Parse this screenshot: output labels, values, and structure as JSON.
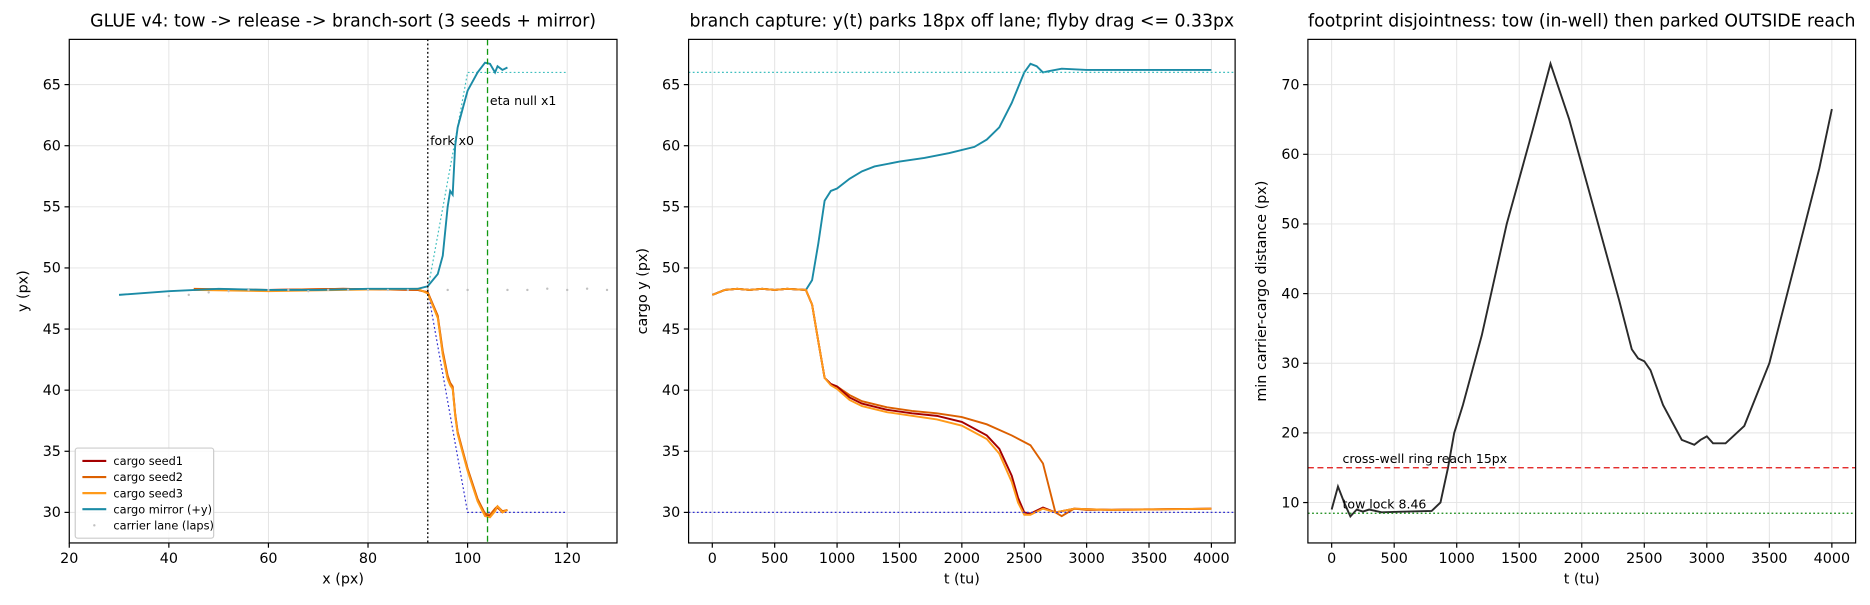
{
  "chart_data": [
    {
      "type": "line",
      "title": "GLUE v4: tow -> release -> branch-sort (3 seeds + mirror)",
      "x_label": "x (px)",
      "y_label": "y (px)",
      "xlim": [
        20,
        130
      ],
      "ylim": [
        27.5,
        68.7
      ],
      "xticks": [
        20,
        40,
        60,
        80,
        100,
        120
      ],
      "yticks": [
        30,
        35,
        40,
        45,
        50,
        55,
        60,
        65
      ],
      "grid": true,
      "legend": "lower left",
      "series": [
        {
          "name": "cargo seed1",
          "color": "#a50000",
          "x": [
            45,
            60,
            75,
            90,
            92,
            94,
            95,
            96,
            96.5,
            97,
            97.5,
            98,
            99,
            100,
            102,
            103.5,
            104.5,
            105.5,
            106,
            107,
            108
          ],
          "y": [
            48.2,
            48.2,
            48.3,
            48.2,
            48,
            46,
            43,
            41,
            40.5,
            40.2,
            38,
            36.5,
            35,
            33.5,
            31,
            29.8,
            29.7,
            30.2,
            30.4,
            30,
            30.2
          ]
        },
        {
          "name": "cargo seed2",
          "color": "#dc6000",
          "x": [
            45,
            60,
            75,
            90,
            92,
            94,
            95,
            96,
            96.5,
            97,
            97.5,
            98,
            99,
            100,
            102,
            103.5,
            104.5,
            105.5,
            106,
            107,
            108
          ],
          "y": [
            48.3,
            48.2,
            48.3,
            48.2,
            48,
            46.1,
            43.2,
            41.2,
            40.6,
            40.3,
            38.1,
            36.6,
            35.1,
            33.6,
            31.1,
            29.9,
            29.8,
            30.3,
            30.5,
            30.1,
            30.2
          ]
        },
        {
          "name": "cargo seed3",
          "color": "#ff9a1a",
          "x": [
            45,
            60,
            75,
            90,
            92,
            94,
            95,
            96,
            96.5,
            97,
            97.5,
            98,
            99,
            100,
            102,
            103.5,
            104.5,
            105.5,
            106,
            107,
            108
          ],
          "y": [
            48.2,
            48.1,
            48.2,
            48.3,
            47.9,
            45.9,
            42.9,
            40.9,
            40.4,
            40.1,
            37.9,
            36.4,
            34.9,
            33.4,
            30.9,
            29.7,
            29.6,
            30.1,
            30.5,
            30,
            30.2
          ]
        },
        {
          "name": "cargo mirror (+y)",
          "color": "#1b8ba6",
          "x": [
            30,
            40,
            50,
            60,
            70,
            80,
            90,
            92,
            94,
            95,
            96,
            96.5,
            97,
            97.5,
            98,
            99,
            100,
            102,
            103.5,
            104.5,
            105.5,
            106,
            107,
            108
          ],
          "y": [
            47.8,
            48.1,
            48.3,
            48.2,
            48.2,
            48.3,
            48.3,
            48.5,
            49.5,
            51,
            55,
            56.3,
            56,
            60,
            61.5,
            63,
            64.5,
            66,
            66.8,
            66.7,
            66,
            66.5,
            66.2,
            66.4
          ]
        },
        {
          "name": "carrier lane (laps)",
          "color": "#c0c0c0",
          "kind": "scatter",
          "x": [
            40,
            44,
            48,
            52,
            56,
            60,
            64,
            68,
            72,
            76,
            80,
            84,
            88,
            92,
            96,
            100,
            104,
            108,
            112,
            116,
            120,
            124,
            128
          ],
          "y": [
            47.7,
            47.8,
            48,
            48.1,
            48.2,
            48.2,
            48.2,
            48.1,
            48.2,
            48.2,
            48.2,
            48.2,
            48.2,
            48.2,
            48.2,
            48.2,
            48.2,
            48.2,
            48.2,
            48.3,
            48.2,
            48.3,
            48.2
          ]
        }
      ],
      "guides": [
        {
          "color": "#3030d0",
          "x": [
            92,
            100,
            120
          ],
          "y": [
            48.2,
            30,
            30
          ]
        },
        {
          "color": "#3fbfbf",
          "x": [
            92,
            100,
            120
          ],
          "y": [
            48.2,
            66,
            66
          ]
        }
      ],
      "reference_lines": [
        {
          "axis": "x",
          "value": 92,
          "label": "fork x0",
          "color": "#000000",
          "style": "dotted"
        },
        {
          "axis": "x",
          "value": 104,
          "label": "eta null x1",
          "color": "#119911",
          "style": "dashed"
        }
      ]
    },
    {
      "type": "line",
      "title": "branch capture: y(t) parks 18px off lane; flyby drag <= 0.33px",
      "x_label": "t (tu)",
      "y_label": "cargo y (px)",
      "xlim": [
        -190,
        4190
      ],
      "ylim": [
        27.5,
        68.7
      ],
      "xticks": [
        0,
        500,
        1000,
        1500,
        2000,
        2500,
        3000,
        3500,
        4000
      ],
      "yticks": [
        30,
        35,
        40,
        45,
        50,
        55,
        60,
        65
      ],
      "grid": true,
      "series": [
        {
          "name": "cargo mirror (+y)",
          "color": "#1b8ba6",
          "x": [
            0,
            100,
            200,
            300,
            400,
            500,
            600,
            750,
            800,
            850,
            900,
            950,
            1000,
            1100,
            1200,
            1300,
            1500,
            1700,
            1900,
            2100,
            2200,
            2300,
            2400,
            2500,
            2550,
            2600,
            2650,
            2700,
            2800,
            3000,
            3500,
            4000
          ],
          "y": [
            47.8,
            48.2,
            48.3,
            48.2,
            48.3,
            48.2,
            48.3,
            48.2,
            49,
            52,
            55.5,
            56.3,
            56.5,
            57.3,
            57.9,
            58.3,
            58.7,
            59,
            59.4,
            59.9,
            60.5,
            61.5,
            63.5,
            66,
            66.7,
            66.5,
            66,
            66.1,
            66.3,
            66.2,
            66.2,
            66.2
          ]
        },
        {
          "name": "cargo seed2",
          "color": "#dc6000",
          "x": [
            0,
            100,
            200,
            300,
            400,
            500,
            600,
            750,
            800,
            850,
            900,
            950,
            1000,
            1100,
            1200,
            1400,
            1600,
            1800,
            2000,
            2200,
            2400,
            2550,
            2650,
            2700,
            2750,
            2800,
            2900,
            3000,
            4000
          ],
          "y": [
            47.8,
            48.2,
            48.3,
            48.2,
            48.3,
            48.2,
            48.3,
            48.2,
            47,
            44,
            41,
            40.5,
            40.3,
            39.6,
            39.1,
            38.6,
            38.3,
            38.1,
            37.8,
            37.2,
            36.3,
            35.5,
            34,
            32,
            30,
            29.7,
            30.3,
            30.2,
            30.3
          ]
        },
        {
          "name": "cargo seed1",
          "color": "#a50000",
          "x": [
            0,
            100,
            200,
            300,
            400,
            500,
            600,
            750,
            800,
            850,
            900,
            950,
            1000,
            1100,
            1200,
            1400,
            1600,
            1800,
            2000,
            2200,
            2300,
            2400,
            2450,
            2500,
            2550,
            2650,
            2750,
            2900,
            3200,
            4000
          ],
          "y": [
            47.8,
            48.2,
            48.3,
            48.2,
            48.3,
            48.2,
            48.3,
            48.2,
            47,
            44,
            41,
            40.5,
            40.3,
            39.4,
            38.9,
            38.4,
            38.1,
            37.9,
            37.4,
            36.3,
            35.2,
            33,
            31.2,
            30,
            29.9,
            30.4,
            30,
            30.3,
            30.2,
            30.3
          ]
        },
        {
          "name": "cargo seed3",
          "color": "#ff9a1a",
          "x": [
            0,
            100,
            200,
            300,
            400,
            500,
            600,
            750,
            800,
            850,
            900,
            950,
            1000,
            1100,
            1200,
            1400,
            1600,
            1800,
            2000,
            2200,
            2300,
            2400,
            2450,
            2500,
            2550,
            2650,
            2750,
            2900,
            3200,
            4000
          ],
          "y": [
            47.8,
            48.2,
            48.3,
            48.2,
            48.3,
            48.2,
            48.3,
            48.2,
            47,
            44,
            41,
            40.4,
            40.1,
            39.2,
            38.7,
            38.2,
            37.9,
            37.6,
            37.1,
            36,
            34.8,
            32.5,
            30.8,
            29.8,
            29.8,
            30.3,
            30,
            30.3,
            30.2,
            30.3
          ]
        }
      ],
      "reference_lines": [
        {
          "axis": "y",
          "value": 66,
          "color": "#3fbfbf",
          "style": "dotted"
        },
        {
          "axis": "y",
          "value": 30,
          "color": "#3030d0",
          "style": "dotted"
        }
      ]
    },
    {
      "type": "line",
      "title": "footprint disjointness: tow (in-well) then parked OUTSIDE reach",
      "x_label": "t (tu)",
      "y_label": "min carrier-cargo distance (px)",
      "xlim": [
        -190,
        4190
      ],
      "ylim": [
        4.2,
        76.5
      ],
      "xticks": [
        0,
        500,
        1000,
        1500,
        2000,
        2500,
        3000,
        3500,
        4000
      ],
      "yticks": [
        10,
        20,
        30,
        40,
        50,
        60,
        70
      ],
      "grid": true,
      "series": [
        {
          "color": "#2a2a2a",
          "x": [
            0,
            50,
            100,
            150,
            200,
            250,
            300,
            400,
            600,
            800,
            870,
            930,
            980,
            1050,
            1200,
            1400,
            1600,
            1750,
            1900,
            2100,
            2300,
            2400,
            2450,
            2500,
            2550,
            2650,
            2800,
            2900,
            2950,
            3000,
            3050,
            3150,
            3300,
            3500,
            3700,
            3900,
            4000
          ],
          "y": [
            9,
            12.3,
            10,
            8,
            9,
            8.7,
            9,
            8.6,
            8.7,
            8.8,
            10,
            15,
            20,
            24,
            34,
            50,
            63,
            73,
            65,
            52,
            39,
            32,
            30.7,
            30.3,
            29,
            24,
            19,
            18.3,
            19,
            19.5,
            18.5,
            18.5,
            21,
            30,
            44,
            58,
            66.5
          ]
        }
      ],
      "reference_lines": [
        {
          "axis": "y",
          "value": 15,
          "label": "cross-well ring reach 15px",
          "color": "#e01010",
          "style": "dashed"
        },
        {
          "axis": "y",
          "value": 8.46,
          "label": "tow lock 8.46",
          "color": "#118811",
          "style": "dotted"
        }
      ]
    }
  ]
}
